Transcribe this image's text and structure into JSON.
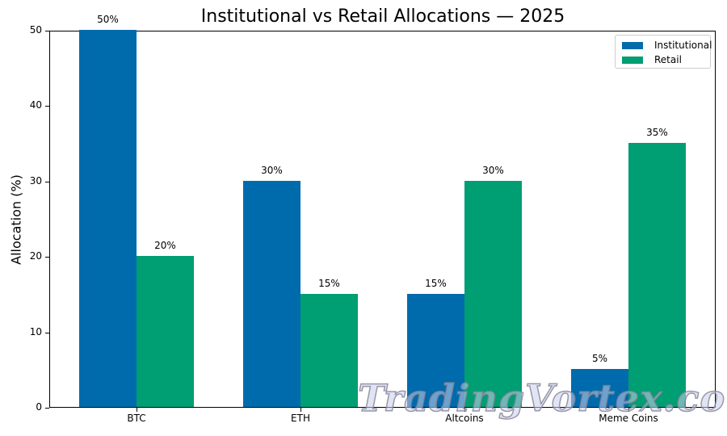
{
  "chart_data": {
    "type": "bar",
    "title": "Institutional vs Retail Allocations — 2025",
    "xlabel": "",
    "ylabel": "Allocation (%)",
    "categories": [
      "BTC",
      "ETH",
      "Altcoins",
      "Meme Coins"
    ],
    "series": [
      {
        "name": "Institutional",
        "color": "#006BAC",
        "values": [
          50,
          30,
          15,
          5
        ],
        "labels": [
          "50%",
          "30%",
          "15%",
          "5%"
        ]
      },
      {
        "name": "Retail",
        "color": "#009E73",
        "values": [
          20,
          15,
          30,
          35
        ],
        "labels": [
          "20%",
          "15%",
          "30%",
          "35%"
        ]
      }
    ],
    "ylim": [
      0,
      50
    ],
    "yticks": [
      "0",
      "10",
      "20",
      "30",
      "40",
      "50"
    ],
    "grid": false,
    "legend_position": "upper right"
  },
  "watermark": "TradingVortex.com"
}
